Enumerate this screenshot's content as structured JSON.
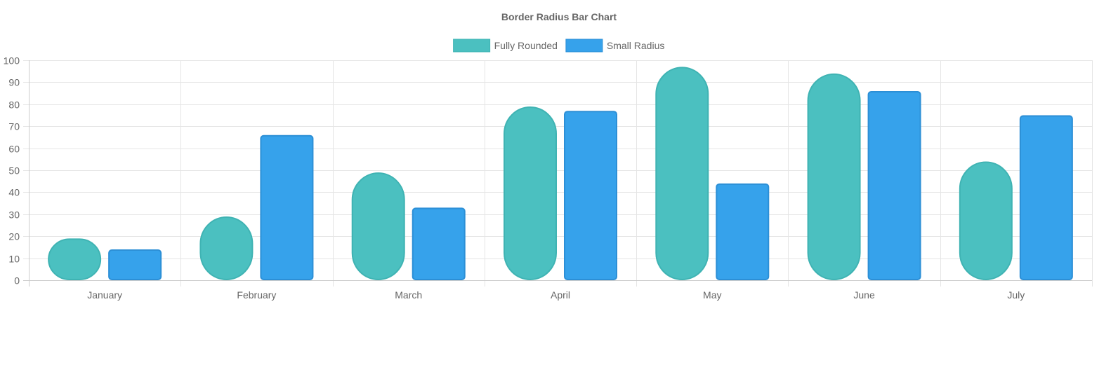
{
  "chart_data": {
    "type": "bar",
    "title": "Border Radius Bar Chart",
    "xlabel": "",
    "ylabel": "",
    "categories": [
      "January",
      "February",
      "March",
      "April",
      "May",
      "June",
      "July"
    ],
    "series": [
      {
        "name": "Fully Rounded",
        "values": [
          19,
          29,
          49,
          79,
          97,
          94,
          54
        ],
        "color": "#4bc0c0",
        "border_color": "#3fb3b3"
      },
      {
        "name": "Small Radius",
        "values": [
          14,
          66,
          33,
          77,
          44,
          86,
          75
        ],
        "color": "#36a2eb",
        "border_color": "#2c8fd6"
      }
    ],
    "ylim": [
      0,
      100
    ],
    "yticks": [
      0,
      10,
      20,
      30,
      40,
      50,
      60,
      70,
      80,
      90,
      100
    ],
    "grid": true,
    "legend_position": "top",
    "grid_color": "#e5e5e5",
    "text_color": "#666666"
  }
}
